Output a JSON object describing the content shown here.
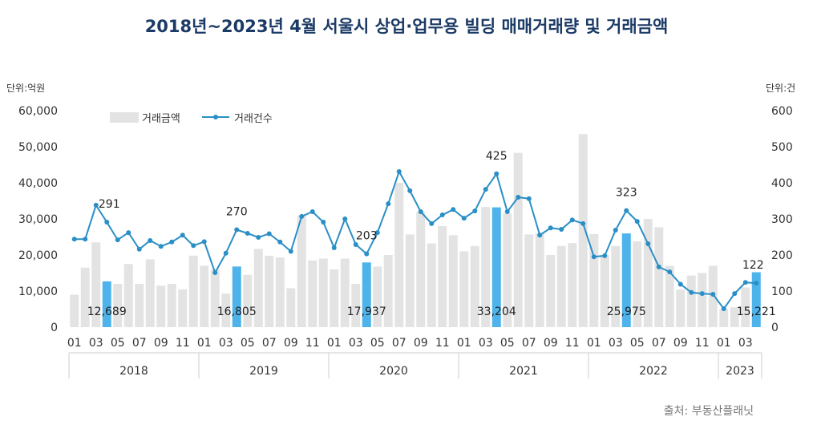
{
  "chart_data": {
    "type": "bar+line",
    "title": "2018년~2023년 4월 서울시 상업·업무용 빌딩 매매거래량 및 거래금액",
    "left_unit": "단위:억원",
    "right_unit": "단위:건",
    "source": "출처: 부동산플래닛",
    "left_ylim": [
      0,
      60000
    ],
    "left_ticks": [
      "0",
      "10,000",
      "20,000",
      "30,000",
      "40,000",
      "50,000",
      "60,000"
    ],
    "right_ylim": [
      0,
      600
    ],
    "right_ticks": [
      "0",
      "100",
      "200",
      "300",
      "400",
      "500",
      "600"
    ],
    "legend": {
      "bar": "거래금액",
      "line": "거래건수",
      "placement": "top-left"
    },
    "years": [
      "2018",
      "2019",
      "2020",
      "2021",
      "2022",
      "2023"
    ],
    "month_tick_labels": [
      "01",
      "03",
      "05",
      "07",
      "09",
      "11"
    ],
    "month_tick_labels_2023": [
      "01",
      "03"
    ],
    "colors": {
      "bar": "#e3e3e3",
      "highlight_bar": "#4db3ea",
      "line": "#2a8fc6",
      "title": "#1b3a66"
    },
    "highlight_month": "04",
    "series": [
      {
        "name": "거래금액",
        "type": "bar",
        "values": [
          9000,
          16500,
          23500,
          12689,
          12000,
          17500,
          12000,
          18800,
          11500,
          12000,
          10500,
          19800,
          17000,
          16000,
          9300,
          16805,
          14500,
          21700,
          19800,
          19300,
          10800,
          31000,
          18500,
          19000,
          16000,
          19000,
          12000,
          17937,
          16800,
          20000,
          40000,
          25700,
          32000,
          23200,
          28000,
          25500,
          21000,
          22500,
          33300,
          33204,
          31500,
          48300,
          25700,
          26000,
          20000,
          22500,
          23300,
          53500,
          25800,
          20000,
          22500,
          25975,
          23800,
          30000,
          27700,
          17000,
          10400,
          14300,
          15000,
          17000,
          5000,
          5500,
          11000,
          15221
        ]
      },
      {
        "name": "거래건수",
        "type": "line",
        "values": [
          244,
          244,
          338,
          291,
          242,
          262,
          216,
          240,
          224,
          236,
          255,
          226,
          237,
          151,
          205,
          270,
          260,
          249,
          259,
          236,
          210,
          307,
          320,
          291,
          220,
          300,
          229,
          203,
          262,
          342,
          431,
          378,
          320,
          287,
          311,
          326,
          302,
          322,
          382,
          425,
          320,
          360,
          356,
          255,
          275,
          271,
          297,
          287,
          195,
          198,
          269,
          323,
          293,
          231,
          167,
          153,
          119,
          96,
          93,
          91,
          51,
          93,
          124,
          122
        ]
      }
    ],
    "bar_labels": [
      {
        "index": 3,
        "text": "12,689"
      },
      {
        "index": 15,
        "text": "16,805"
      },
      {
        "index": 27,
        "text": "17,937"
      },
      {
        "index": 39,
        "text": "33,204"
      },
      {
        "index": 51,
        "text": "25,975"
      },
      {
        "index": 63,
        "text": "15,221"
      }
    ],
    "line_labels": [
      {
        "index": 3,
        "text": "291"
      },
      {
        "index": 15,
        "text": "270"
      },
      {
        "index": 27,
        "text": "203"
      },
      {
        "index": 39,
        "text": "425"
      },
      {
        "index": 51,
        "text": "323"
      },
      {
        "index": 63,
        "text": "122"
      }
    ]
  }
}
